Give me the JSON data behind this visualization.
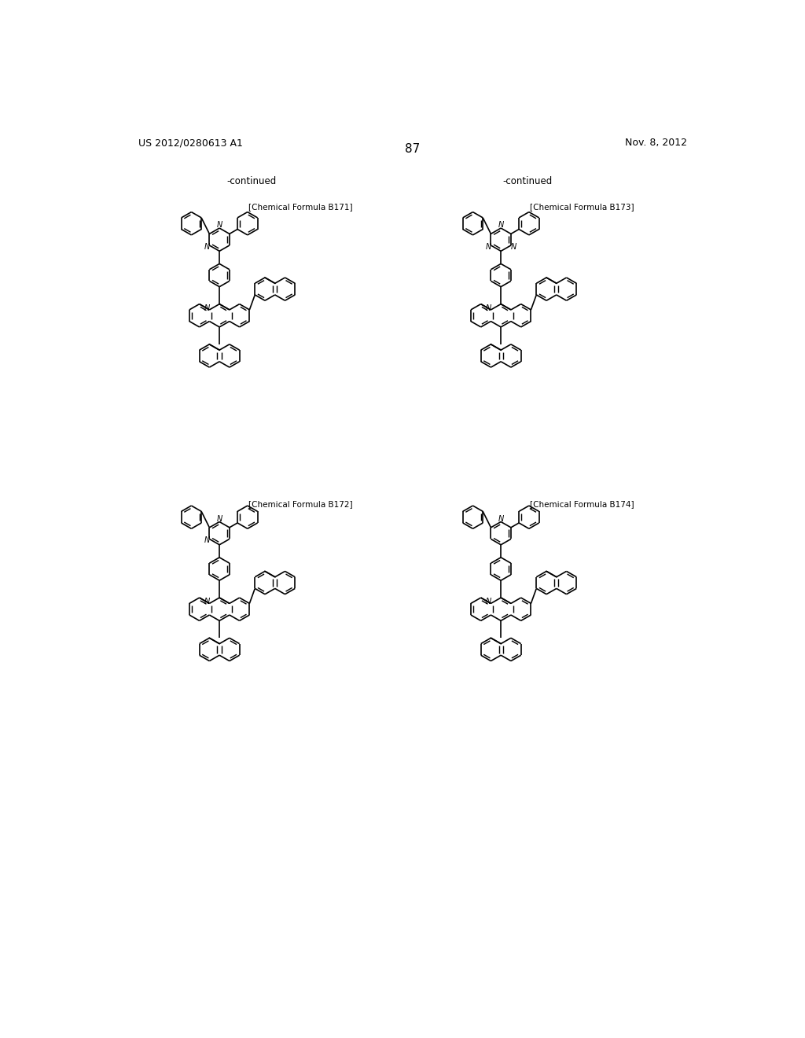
{
  "page_header_left": "US 2012/0280613 A1",
  "page_header_right": "Nov. 8, 2012",
  "page_number": "87",
  "continued_left": "-continued",
  "continued_right": "-continued",
  "formula_labels": [
    "[Chemical Formula B171]",
    "[Chemical Formula B172]",
    "[Chemical Formula B173]",
    "[Chemical Formula B174]"
  ],
  "smiles": [
    "c1ccc(-c2cc(-c3ccccc3)nc(-c3ccccc3)n2)cc1-c1ccc(-c2nc3ccc4ccccc4c3cc2-c2cccc3ccccc23)cc1",
    "c1ccc(-c2cc(-c3ccccc3)nc(-c3ccccc3)n2)cc1",
    "c1ccc(-c2nc(-c3ccccc3)nc(-c3ccccc3)n2)cc1",
    "c1ccc(-c2cc(-c3ccccc3)ccn2)cc1"
  ],
  "bg_color": "#ffffff",
  "line_color": "#000000",
  "text_color": "#000000"
}
